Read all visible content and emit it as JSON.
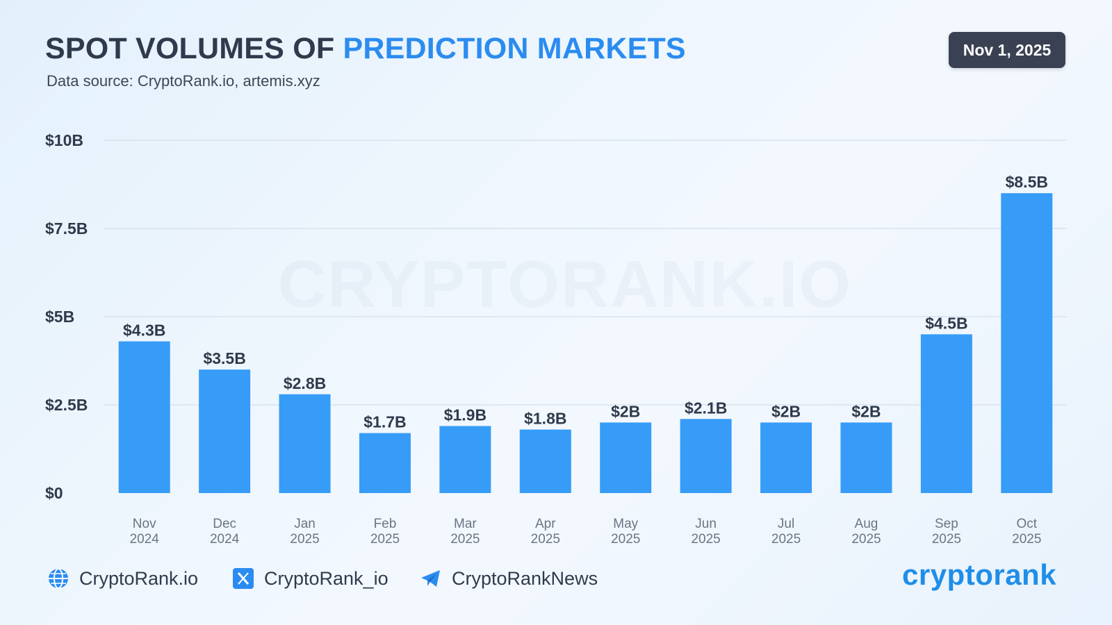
{
  "header": {
    "title_prefix": "SPOT VOLUMES OF ",
    "title_highlight": "PREDICTION MARKETS",
    "subtitle": "Data source: CryptoRank.io, artemis.xyz",
    "date": "Nov 1, 2025"
  },
  "watermark": "CRYPTORANK.IO",
  "colors": {
    "bar": "#369cf7",
    "accent": "#2b8cf0",
    "text": "#2f3a4c",
    "badge": "#3a4153",
    "grid": "#cdd8e4"
  },
  "chart_data": {
    "type": "bar",
    "title": "SPOT VOLUMES OF PREDICTION MARKETS",
    "xlabel": "",
    "ylabel": "",
    "ylim": [
      0,
      10
    ],
    "grid": true,
    "yticks": [
      {
        "value": 0,
        "label": "$0"
      },
      {
        "value": 2.5,
        "label": "$2.5B"
      },
      {
        "value": 5,
        "label": "$5B"
      },
      {
        "value": 7.5,
        "label": "$7.5B"
      },
      {
        "value": 10,
        "label": "$10B"
      }
    ],
    "categories": [
      {
        "month": "Nov",
        "year": "2024"
      },
      {
        "month": "Dec",
        "year": "2024"
      },
      {
        "month": "Jan",
        "year": "2025"
      },
      {
        "month": "Feb",
        "year": "2025"
      },
      {
        "month": "Mar",
        "year": "2025"
      },
      {
        "month": "Apr",
        "year": "2025"
      },
      {
        "month": "May",
        "year": "2025"
      },
      {
        "month": "Jun",
        "year": "2025"
      },
      {
        "month": "Jul",
        "year": "2025"
      },
      {
        "month": "Aug",
        "year": "2025"
      },
      {
        "month": "Sep",
        "year": "2025"
      },
      {
        "month": "Oct",
        "year": "2025"
      }
    ],
    "values": [
      4.3,
      3.5,
      2.8,
      1.7,
      1.9,
      1.8,
      2.0,
      2.1,
      2.0,
      2.0,
      4.5,
      8.5
    ],
    "labels": [
      "$4.3B",
      "$3.5B",
      "$2.8B",
      "$1.7B",
      "$1.9B",
      "$1.8B",
      "$2B",
      "$2.1B",
      "$2B",
      "$2B",
      "$4.5B",
      "$8.5B"
    ]
  },
  "footer": {
    "website": "CryptoRank.io",
    "twitter": "CryptoRank_io",
    "telegram": "CryptoRankNews",
    "brand": "cryptorank"
  }
}
